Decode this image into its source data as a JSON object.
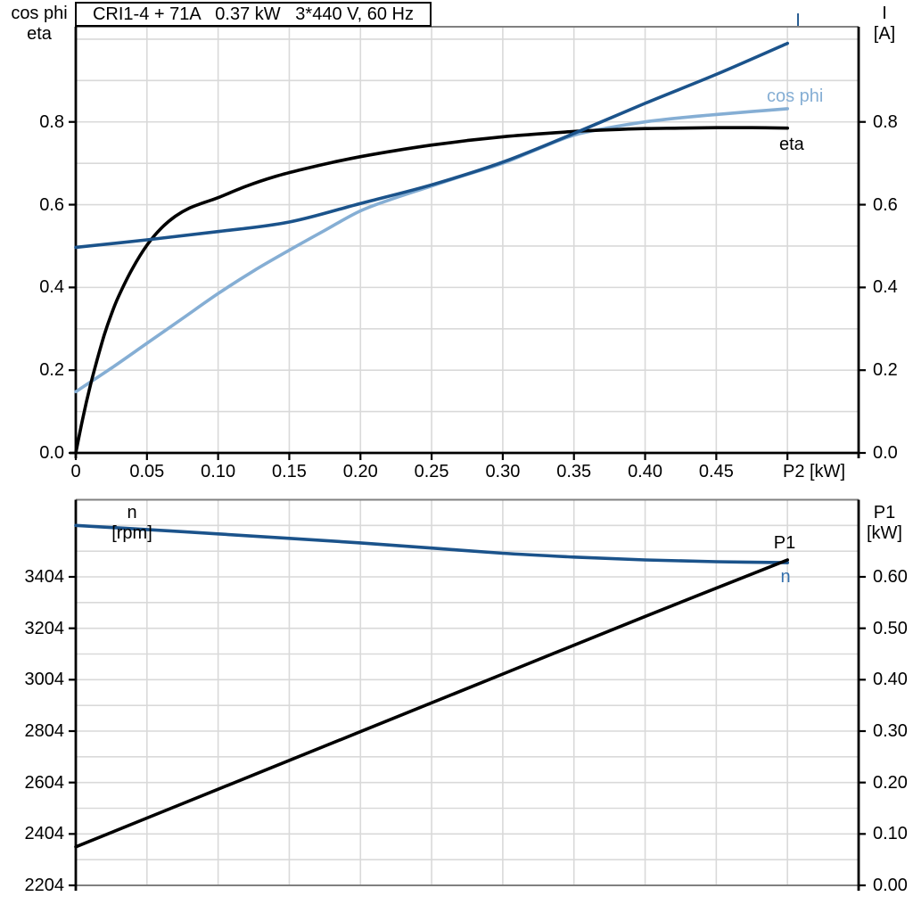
{
  "title": {
    "text": "CRI1-4 + 71A   0.37 kW   3*440 V, 60 Hz"
  },
  "palette": {
    "dark_blue": "#1b538b",
    "light_blue": "#85aed4",
    "black": "#000000",
    "n_label": "#3470ad",
    "grid": "#d9d9d9",
    "border": "#808080",
    "bg": "#ffffff"
  },
  "chart_data": [
    {
      "type": "line",
      "title": "CRI1-4 + 71A   0.37 kW   3*440 V, 60 Hz",
      "xlabel": "P2 [kW]",
      "x_range": [
        0,
        0.55
      ],
      "grid": {
        "x_step": 0.05,
        "x_max": 0.5,
        "y_step": 0.1,
        "y_max": 1.0,
        "grid_on": true
      },
      "legend_position": "end-of-curve-labels",
      "left_axis": {
        "header": [
          "cos phi",
          "eta"
        ],
        "range": [
          0,
          1.03
        ],
        "ticks": [
          {
            "v": 0.0,
            "label": "0.0"
          },
          {
            "v": 0.2,
            "label": "0.2"
          },
          {
            "v": 0.4,
            "label": "0.4"
          },
          {
            "v": 0.6,
            "label": "0.6"
          },
          {
            "v": 0.8,
            "label": "0.8"
          }
        ]
      },
      "right_axis": {
        "header": [
          "I",
          "[A]"
        ],
        "range": [
          0,
          1.03
        ],
        "ticks": [
          {
            "v": 0.0,
            "label": "0.0"
          },
          {
            "v": 0.2,
            "label": "0.2"
          },
          {
            "v": 0.4,
            "label": "0.4"
          },
          {
            "v": 0.6,
            "label": "0.6"
          },
          {
            "v": 0.8,
            "label": "0.8"
          }
        ]
      },
      "x_ticks": [
        {
          "v": 0.0,
          "label": "0"
        },
        {
          "v": 0.05,
          "label": "0.05"
        },
        {
          "v": 0.1,
          "label": "0.10"
        },
        {
          "v": 0.15,
          "label": "0.15"
        },
        {
          "v": 0.2,
          "label": "0.20"
        },
        {
          "v": 0.25,
          "label": "0.25"
        },
        {
          "v": 0.3,
          "label": "0.30"
        },
        {
          "v": 0.35,
          "label": "0.35"
        },
        {
          "v": 0.4,
          "label": "0.40"
        },
        {
          "v": 0.45,
          "label": "0.45"
        },
        {
          "v": 0.5,
          "label": ""
        }
      ],
      "series": [
        {
          "name": "cos_phi",
          "label": "cos phi",
          "color": "light_blue",
          "axis": "left",
          "points": [
            [
              0,
              0.148
            ],
            [
              0.025,
              0.205
            ],
            [
              0.05,
              0.265
            ],
            [
              0.075,
              0.325
            ],
            [
              0.1,
              0.385
            ],
            [
              0.125,
              0.44
            ],
            [
              0.15,
              0.49
            ],
            [
              0.175,
              0.538
            ],
            [
              0.2,
              0.585
            ],
            [
              0.225,
              0.617
            ],
            [
              0.25,
              0.645
            ],
            [
              0.275,
              0.673
            ],
            [
              0.3,
              0.7
            ],
            [
              0.325,
              0.735
            ],
            [
              0.35,
              0.768
            ],
            [
              0.375,
              0.786
            ],
            [
              0.4,
              0.8
            ],
            [
              0.425,
              0.81
            ],
            [
              0.45,
              0.818
            ],
            [
              0.475,
              0.825
            ],
            [
              0.5,
              0.832
            ]
          ]
        },
        {
          "name": "eta",
          "label": "eta",
          "color": "black",
          "axis": "left",
          "points": [
            [
              0,
              0
            ],
            [
              0.005,
              0.085
            ],
            [
              0.01,
              0.16
            ],
            [
              0.015,
              0.225
            ],
            [
              0.02,
              0.285
            ],
            [
              0.025,
              0.335
            ],
            [
              0.03,
              0.378
            ],
            [
              0.04,
              0.447
            ],
            [
              0.05,
              0.502
            ],
            [
              0.06,
              0.543
            ],
            [
              0.07,
              0.572
            ],
            [
              0.08,
              0.592
            ],
            [
              0.09,
              0.605
            ],
            [
              0.1,
              0.617
            ],
            [
              0.12,
              0.645
            ],
            [
              0.14,
              0.668
            ],
            [
              0.16,
              0.686
            ],
            [
              0.18,
              0.702
            ],
            [
              0.2,
              0.716
            ],
            [
              0.225,
              0.731
            ],
            [
              0.25,
              0.744
            ],
            [
              0.275,
              0.755
            ],
            [
              0.3,
              0.764
            ],
            [
              0.325,
              0.771
            ],
            [
              0.35,
              0.777
            ],
            [
              0.375,
              0.781
            ],
            [
              0.4,
              0.784
            ],
            [
              0.425,
              0.785
            ],
            [
              0.45,
              0.786
            ],
            [
              0.475,
              0.786
            ],
            [
              0.5,
              0.785
            ]
          ]
        },
        {
          "name": "I",
          "label": "I",
          "color": "dark_blue",
          "axis": "right",
          "points": [
            [
              0,
              0.497
            ],
            [
              0.05,
              0.515
            ],
            [
              0.1,
              0.535
            ],
            [
              0.15,
              0.558
            ],
            [
              0.2,
              0.603
            ],
            [
              0.25,
              0.648
            ],
            [
              0.3,
              0.703
            ],
            [
              0.35,
              0.772
            ],
            [
              0.4,
              0.845
            ],
            [
              0.45,
              0.915
            ],
            [
              0.5,
              0.99
            ]
          ]
        }
      ]
    },
    {
      "type": "line",
      "xlabel": "",
      "x_range": [
        0,
        0.55
      ],
      "grid": {
        "x_step": 0.05,
        "x_max": 0.5,
        "y_step": 100,
        "y_max": 3604,
        "grid_on": true
      },
      "left_axis": {
        "header": [
          "n",
          "[rpm]"
        ],
        "range": [
          2204,
          3704
        ],
        "ticks": [
          {
            "v": 2204,
            "label": "2204"
          },
          {
            "v": 2404,
            "label": "2404"
          },
          {
            "v": 2604,
            "label": "2604"
          },
          {
            "v": 2804,
            "label": "2804"
          },
          {
            "v": 3004,
            "label": "3004"
          },
          {
            "v": 3204,
            "label": "3204"
          },
          {
            "v": 3404,
            "label": "3404"
          }
        ]
      },
      "right_axis": {
        "header": [
          "P1",
          "[kW]"
        ],
        "range": [
          0,
          0.75
        ],
        "ticks": [
          {
            "v": 0.0,
            "label": "0.00"
          },
          {
            "v": 0.1,
            "label": "0.10"
          },
          {
            "v": 0.2,
            "label": "0.20"
          },
          {
            "v": 0.3,
            "label": "0.30"
          },
          {
            "v": 0.4,
            "label": "0.40"
          },
          {
            "v": 0.5,
            "label": "0.50"
          },
          {
            "v": 0.6,
            "label": "0.60"
          }
        ]
      },
      "x_ticks": [],
      "series": [
        {
          "name": "n",
          "label": "n",
          "color": "dark_blue",
          "label_color": "n_label",
          "axis": "left",
          "points": [
            [
              0,
              3604
            ],
            [
              0.05,
              3588
            ],
            [
              0.1,
              3571
            ],
            [
              0.15,
              3554
            ],
            [
              0.2,
              3536
            ],
            [
              0.25,
              3516
            ],
            [
              0.3,
              3496
            ],
            [
              0.35,
              3481
            ],
            [
              0.4,
              3470
            ],
            [
              0.45,
              3463
            ],
            [
              0.5,
              3459
            ]
          ]
        },
        {
          "name": "P1",
          "label": "P1",
          "color": "black",
          "axis": "right",
          "points": [
            [
              0,
              0.075
            ],
            [
              0.1,
              0.187
            ],
            [
              0.2,
              0.299
            ],
            [
              0.3,
              0.411
            ],
            [
              0.4,
              0.523
            ],
            [
              0.5,
              0.633
            ]
          ]
        }
      ]
    }
  ]
}
